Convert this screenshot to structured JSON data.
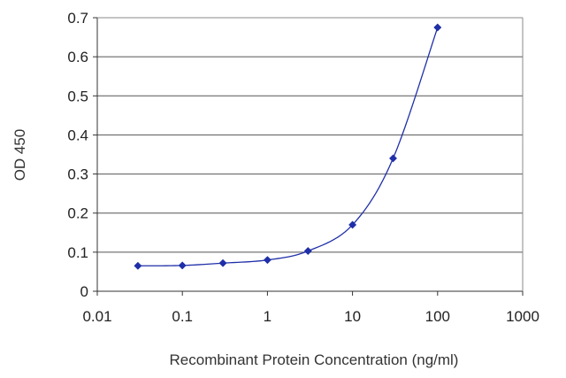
{
  "chart_data": {
    "type": "line",
    "title": "",
    "xlabel": "Recombinant Protein Concentration (ng/ml)",
    "ylabel": "OD 450",
    "xscale": "log",
    "xlim": [
      0.01,
      1000
    ],
    "ylim": [
      0,
      0.7
    ],
    "xticks": [
      "0.01",
      "0.1",
      "1",
      "10",
      "100",
      "1000"
    ],
    "xtick_values": [
      0.01,
      0.1,
      1,
      10,
      100,
      1000
    ],
    "yticks": [
      "0",
      "0.1",
      "0.2",
      "0.3",
      "0.4",
      "0.5",
      "0.6",
      "0.7"
    ],
    "ytick_values": [
      0,
      0.1,
      0.2,
      0.3,
      0.4,
      0.5,
      0.6,
      0.7
    ],
    "grid": "horizontal",
    "series": [
      {
        "x": [
          0.03,
          0.1,
          0.3,
          1,
          3,
          10,
          30,
          100
        ],
        "y": [
          0.065,
          0.066,
          0.072,
          0.08,
          0.103,
          0.17,
          0.34,
          0.675
        ],
        "color": "#1f2fa8"
      }
    ]
  }
}
